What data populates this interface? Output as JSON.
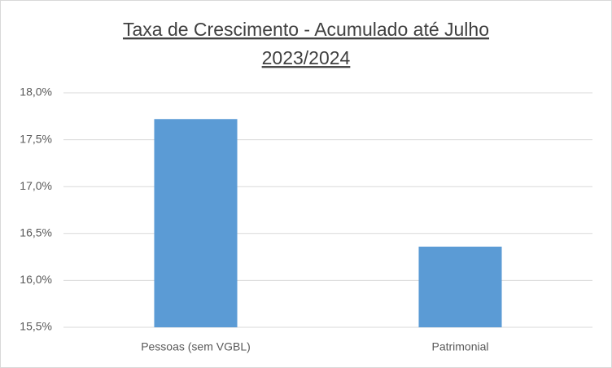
{
  "chart_data": {
    "type": "bar",
    "title": [
      "Taxa de Crescimento - Acumulado até Julho",
      "2023/2024"
    ],
    "categories": [
      "Pessoas (sem VGBL)",
      "Patrimonial"
    ],
    "values": [
      17.72,
      16.36
    ],
    "color": "#5b9bd5",
    "ylim": [
      15.5,
      18.0
    ],
    "yticks": [
      {
        "value": 15.5,
        "label": "15,5%"
      },
      {
        "value": 16.0,
        "label": "16,0%"
      },
      {
        "value": 16.5,
        "label": "16,5%"
      },
      {
        "value": 17.0,
        "label": "17,0%"
      },
      {
        "value": 17.5,
        "label": "17,5%"
      },
      {
        "value": 18.0,
        "label": "18,0%"
      }
    ],
    "grid": true
  }
}
